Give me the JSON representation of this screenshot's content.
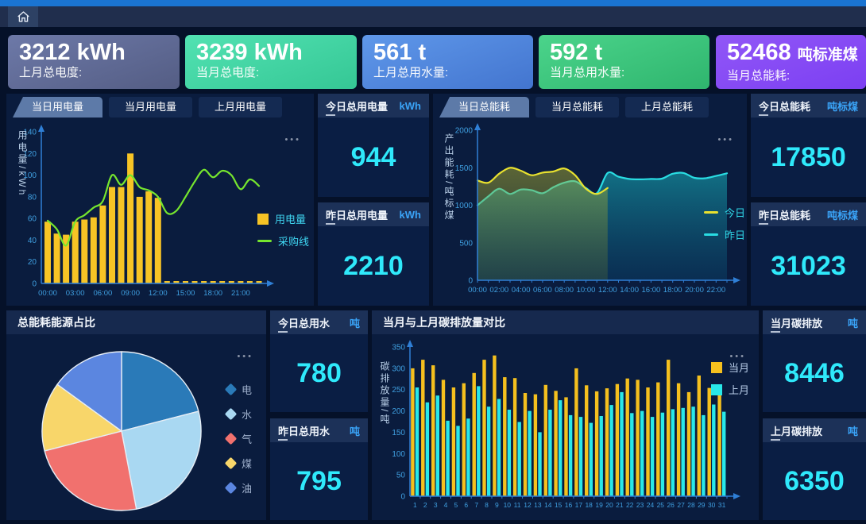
{
  "topbar": {
    "home_icon": "home-icon"
  },
  "kpis": [
    {
      "value": "3212",
      "unit": "kWh",
      "label": "上月总电度:",
      "grad": [
        "#6d79a8",
        "#545d84"
      ]
    },
    {
      "value": "3239",
      "unit": "kWh",
      "label": "当月总电度:",
      "grad": [
        "#52e2b2",
        "#35c795"
      ]
    },
    {
      "value": "561",
      "unit": "t",
      "label": "上月总用水量:",
      "grad": [
        "#5f98ea",
        "#4375cf"
      ]
    },
    {
      "value": "592",
      "unit": "t",
      "label": "当月总用水量:",
      "grad": [
        "#4bd48b",
        "#2fb56e"
      ]
    },
    {
      "value": "52468",
      "unit": "吨标准煤",
      "label": "当月总能耗:",
      "grad": [
        "#9157f7",
        "#7c3ff2"
      ]
    }
  ],
  "electric_panel": {
    "tabs": [
      "当日用电量",
      "当月用电量",
      "上月用电量"
    ],
    "menu_icon": "•••"
  },
  "energy_panel": {
    "tabs": [
      "当日总能耗",
      "当月总能耗",
      "上月总能耗"
    ],
    "menu_icon": "•••"
  },
  "pie_panel": {
    "title": "总能耗能源占比",
    "menu_icon": "•••"
  },
  "carbon_panel": {
    "title": "当月与上月碳排放量对比",
    "menu_icon": "•••"
  },
  "stats": {
    "elec": [
      {
        "title": "今日总用电量",
        "unit": "kWh",
        "value": "944"
      },
      {
        "title": "昨日总用电量",
        "unit": "kWh",
        "value": "2210"
      }
    ],
    "energy": [
      {
        "title": "今日总能耗",
        "unit": "吨标煤",
        "value": "17850"
      },
      {
        "title": "昨日总能耗",
        "unit": "吨标煤",
        "value": "31023"
      }
    ],
    "water": [
      {
        "title": "今日总用水",
        "unit": "吨",
        "value": "780"
      },
      {
        "title": "昨日总用水",
        "unit": "吨",
        "value": "795"
      }
    ],
    "carbon": [
      {
        "title": "当月碳排放",
        "unit": "吨",
        "value": "8446"
      },
      {
        "title": "上月碳排放",
        "unit": "吨",
        "value": "6350"
      }
    ]
  },
  "colors": {
    "accent_number": "#2fe9fb",
    "unit_blue": "#3aa4f8",
    "axis_blue": "#2f7fd6",
    "tick_blue": "#3f9fe0"
  },
  "chart_data": [
    {
      "id": "daily-electricity",
      "type": "bar-line",
      "ylabel": "用电量/kWh",
      "ylim": [
        0,
        140
      ],
      "yticks": [
        0,
        20,
        40,
        60,
        80,
        100,
        120,
        140
      ],
      "hours": 24,
      "xtick_labels": [
        "00:00",
        "03:00",
        "06:00",
        "09:00",
        "12:00",
        "15:00",
        "18:00",
        "21:00"
      ],
      "xtick_step": 3,
      "grid": false,
      "legend_position": "right",
      "bar_series": {
        "name": "用电量",
        "color": "#f7c425",
        "values": [
          57,
          46,
          45,
          57,
          59,
          61,
          72,
          89,
          89,
          120,
          80,
          85,
          79
        ]
      },
      "line_series": {
        "name": "采购线",
        "color": "#76e62e",
        "values": [
          58,
          50,
          35,
          57,
          63,
          70,
          76,
          100,
          91,
          100,
          89,
          86,
          80,
          65,
          67,
          80,
          94,
          105,
          98,
          104,
          100,
          87,
          96,
          90
        ]
      }
    },
    {
      "id": "daily-energy",
      "type": "area",
      "ylabel": "产出能耗/吨标煤",
      "ylim": [
        0,
        2000
      ],
      "yticks": [
        0,
        500,
        1000,
        1500,
        2000
      ],
      "hours": 24,
      "xtick_labels": [
        "00:00",
        "02:00",
        "04:00",
        "06:00",
        "08:00",
        "10:00",
        "12:00",
        "14:00",
        "16:00",
        "18:00",
        "20:00",
        "22:00"
      ],
      "xtick_step": 2,
      "grid": false,
      "legend_position": "right",
      "series": [
        {
          "name": "今日",
          "color": "#e8e12f",
          "fill": [
            "rgba(190,190,45,0.45)",
            "rgba(85,110,50,0.30)"
          ],
          "values": [
            1330,
            1300,
            1420,
            1500,
            1460,
            1400,
            1435,
            1450,
            1490,
            1400,
            1220,
            1150,
            1230
          ]
        },
        {
          "name": "昨日",
          "color": "#29dce2",
          "fill": [
            "rgba(24,180,190,0.55)",
            "rgba(10,75,115,0.38)"
          ],
          "values": [
            1000,
            1120,
            1220,
            1150,
            1210,
            1200,
            1160,
            1240,
            1300,
            1320,
            1230,
            1160,
            1430,
            1380,
            1350,
            1345,
            1350,
            1355,
            1420,
            1430,
            1365,
            1360,
            1390,
            1425
          ]
        }
      ]
    },
    {
      "id": "energy-source-pie",
      "type": "pie",
      "title": "总能耗能源占比",
      "legend_position": "right",
      "slices": [
        {
          "label": "电",
          "value": 21,
          "color": "#2a7ab8"
        },
        {
          "label": "水",
          "value": 26,
          "color": "#a9d8f2"
        },
        {
          "label": "气",
          "value": 24,
          "color": "#f1716e"
        },
        {
          "label": "煤",
          "value": 14,
          "color": "#f8d66a"
        },
        {
          "label": "油",
          "value": 15,
          "color": "#5b86e0"
        }
      ]
    },
    {
      "id": "carbon-compare",
      "type": "grouped-bar",
      "title": "当月与上月碳排放量对比",
      "ylabel": "碳排放量/吨",
      "ylim": [
        0,
        350
      ],
      "yticks": [
        0,
        50,
        100,
        150,
        200,
        250,
        300,
        350
      ],
      "categories": [
        "1",
        "2",
        "3",
        "4",
        "5",
        "6",
        "7",
        "8",
        "9",
        "10",
        "11",
        "12",
        "13",
        "14",
        "15",
        "16",
        "17",
        "18",
        "19",
        "20",
        "21",
        "22",
        "23",
        "24",
        "25",
        "26",
        "27",
        "28",
        "29",
        "30",
        "31"
      ],
      "grid": false,
      "legend_position": "right",
      "series": [
        {
          "name": "当月",
          "color": "#f5c01e",
          "values": [
            300,
            320,
            307,
            273,
            255,
            265,
            289,
            320,
            330,
            279,
            277,
            242,
            239,
            261,
            247,
            232,
            300,
            260,
            246,
            253,
            263,
            276,
            273,
            255,
            267,
            320,
            265,
            244,
            283,
            254,
            260
          ]
        },
        {
          "name": "上月",
          "color": "#29e8e8",
          "values": [
            255,
            220,
            236,
            177,
            165,
            182,
            258,
            210,
            228,
            203,
            174,
            200,
            150,
            203,
            225,
            190,
            186,
            172,
            188,
            214,
            244,
            195,
            200,
            186,
            196,
            204,
            207,
            210,
            190,
            215,
            198
          ]
        }
      ]
    }
  ]
}
